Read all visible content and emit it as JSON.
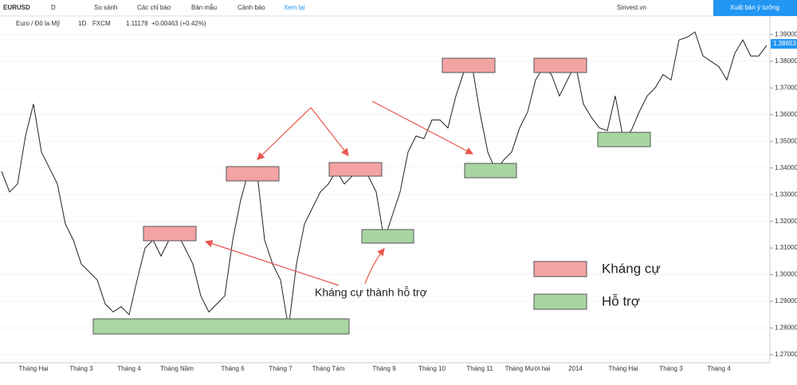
{
  "toolbar": {
    "symbol": "EURUSD",
    "interval": "D",
    "items": [
      "So sánh",
      "Các chỉ báo",
      "Bản mẫu",
      "Cảnh báo",
      "Xem lại"
    ],
    "account": "Sinvest.vn",
    "publish": "Xuất bản ý tưởng"
  },
  "legend_bar": {
    "name": "Euro / Đô la Mỹ",
    "interval": "1D",
    "source": "FXCM",
    "price": "1.11178",
    "change": "+0.00463 (+0.42%)"
  },
  "chart_data": {
    "type": "line",
    "color": "#222222",
    "categories": [
      null,
      null,
      null,
      null,
      "Tháng Hai",
      null,
      null,
      null,
      null,
      null,
      "Tháng 3",
      null,
      null,
      null,
      null,
      null,
      "Tháng 4",
      null,
      null,
      null,
      null,
      null,
      "Tháng Năm",
      null,
      null,
      null,
      null,
      null,
      null,
      "Tháng 6",
      null,
      null,
      null,
      null,
      null,
      "Tháng 7",
      null,
      null,
      null,
      null,
      null,
      "Tháng Tám",
      null,
      null,
      null,
      null,
      null,
      null,
      "Tháng 9",
      null,
      null,
      null,
      null,
      null,
      "Tháng 10",
      null,
      null,
      null,
      null,
      null,
      "Tháng 11",
      null,
      null,
      null,
      null,
      null,
      "Tháng Mười hai",
      null,
      null,
      null,
      null,
      null,
      "2014",
      null,
      null,
      null,
      null,
      null,
      "Tháng Hai",
      null,
      null,
      null,
      null,
      null,
      "Tháng 3",
      null,
      null,
      null,
      null,
      null,
      "Tháng 4",
      null,
      null,
      null,
      null,
      null,
      null
    ],
    "values": [
      1.3387,
      1.331,
      1.334,
      1.352,
      1.364,
      1.346,
      1.34,
      1.334,
      1.319,
      1.313,
      1.304,
      1.301,
      1.298,
      1.289,
      1.286,
      1.288,
      1.285,
      1.298,
      1.31,
      1.313,
      1.307,
      1.313,
      1.316,
      1.31,
      1.304,
      1.292,
      1.286,
      1.289,
      1.292,
      1.313,
      1.328,
      1.339,
      1.34,
      1.313,
      1.304,
      1.298,
      1.28,
      1.304,
      1.319,
      1.325,
      1.331,
      1.334,
      1.339,
      1.334,
      1.337,
      1.342,
      1.337,
      1.331,
      1.313,
      1.322,
      1.331,
      1.346,
      1.352,
      1.351,
      1.358,
      1.358,
      1.355,
      1.367,
      1.376,
      1.379,
      1.361,
      1.346,
      1.339,
      1.343,
      1.346,
      1.355,
      1.361,
      1.373,
      1.378,
      1.375,
      1.367,
      1.373,
      1.379,
      1.364,
      1.359,
      1.355,
      1.354,
      1.367,
      1.351,
      1.354,
      1.361,
      1.367,
      1.37,
      1.375,
      1.373,
      1.388,
      1.389,
      1.391,
      1.382,
      1.38,
      1.378,
      1.373,
      1.383,
      1.388,
      1.382,
      1.382,
      1.386
    ],
    "ylim": [
      1.267,
      1.397
    ],
    "yticks": [
      {
        "value": 1.27,
        "label": "1.27000"
      },
      {
        "value": 1.28,
        "label": "1.28000"
      },
      {
        "value": 1.29,
        "label": "1.29000"
      },
      {
        "value": 1.3,
        "label": "1.30000"
      },
      {
        "value": 1.31,
        "label": "1.31000"
      },
      {
        "value": 1.32,
        "label": "1.32000"
      },
      {
        "value": 1.33,
        "label": "1.33000"
      },
      {
        "value": 1.34,
        "label": "1.34000"
      },
      {
        "value": 1.35,
        "label": "1.35000"
      },
      {
        "value": 1.36,
        "label": "1.36000"
      },
      {
        "value": 1.37,
        "label": "1.37000"
      },
      {
        "value": 1.38,
        "label": "1.38000"
      },
      {
        "value": 1.39,
        "label": "1.39000"
      }
    ],
    "last_price": {
      "value": 1.38653,
      "label": "1.38653"
    },
    "annotations": {
      "resistance": "Kháng cự",
      "support": "Hỗ trợ",
      "flip": "Kháng cự thành hỗ trợ"
    }
  }
}
